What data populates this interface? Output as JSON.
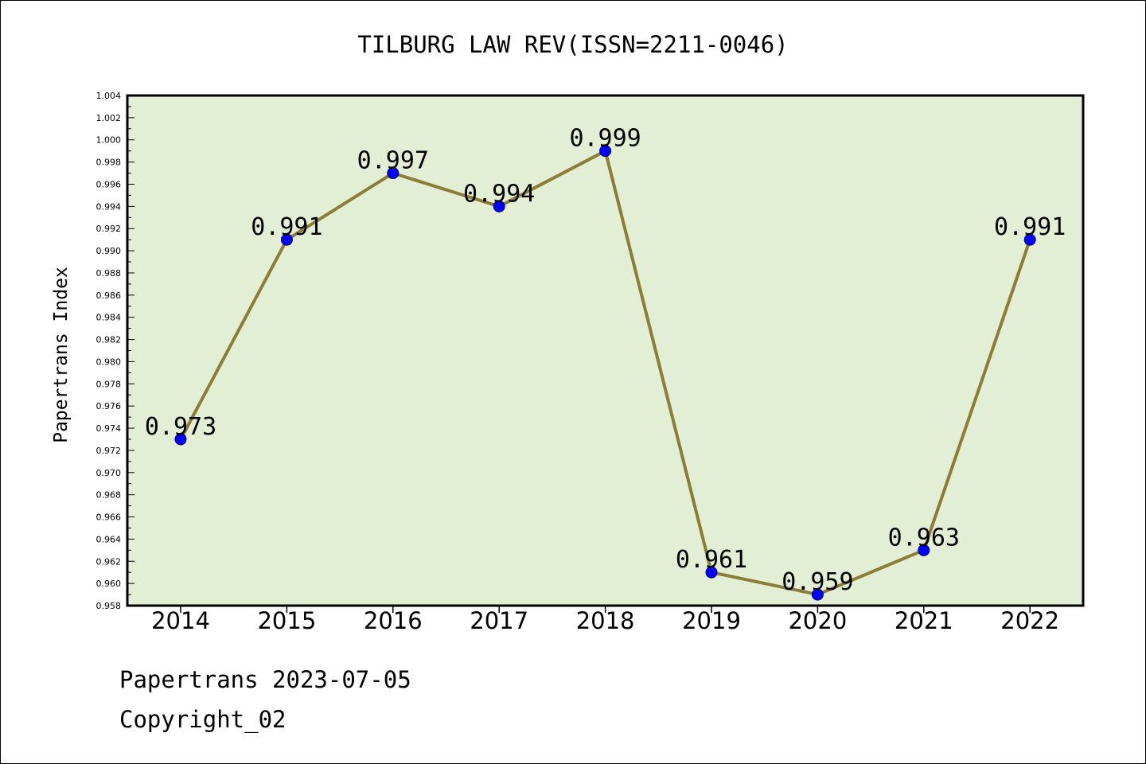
{
  "chart_data": {
    "type": "line",
    "title": "TILBURG LAW REV(ISSN=2211-0046)",
    "xlabel": "",
    "ylabel": "Papertrans Index",
    "categories": [
      "2014",
      "2015",
      "2016",
      "2017",
      "2018",
      "2019",
      "2020",
      "2021",
      "2022"
    ],
    "series": [
      {
        "values": [
          0.973,
          0.991,
          0.997,
          0.994,
          0.999,
          0.961,
          0.959,
          0.963,
          0.991
        ],
        "data_labels": [
          "0.973",
          "0.991",
          "0.997",
          "0.994",
          "0.999",
          "0.961",
          "0.959",
          "0.963",
          "0.991"
        ]
      }
    ],
    "ylim": [
      0.958,
      1.004
    ],
    "yticks": [
      "0.958",
      "0.960",
      "0.962",
      "0.964",
      "0.966",
      "0.968",
      "0.970",
      "0.972",
      "0.974",
      "0.976",
      "0.978",
      "0.980",
      "0.982",
      "0.984",
      "0.986",
      "0.988",
      "0.990",
      "0.992",
      "0.994",
      "0.996",
      "0.998",
      "1.000",
      "1.002",
      "1.004"
    ],
    "grid": false,
    "legend": "none",
    "colors": {
      "line": "#8b7d35",
      "marker": "#0000ff",
      "plot_background": "#e2efd5"
    }
  },
  "footer": {
    "line1": "Papertrans 2023-07-05",
    "line2": "Copyright_02"
  }
}
